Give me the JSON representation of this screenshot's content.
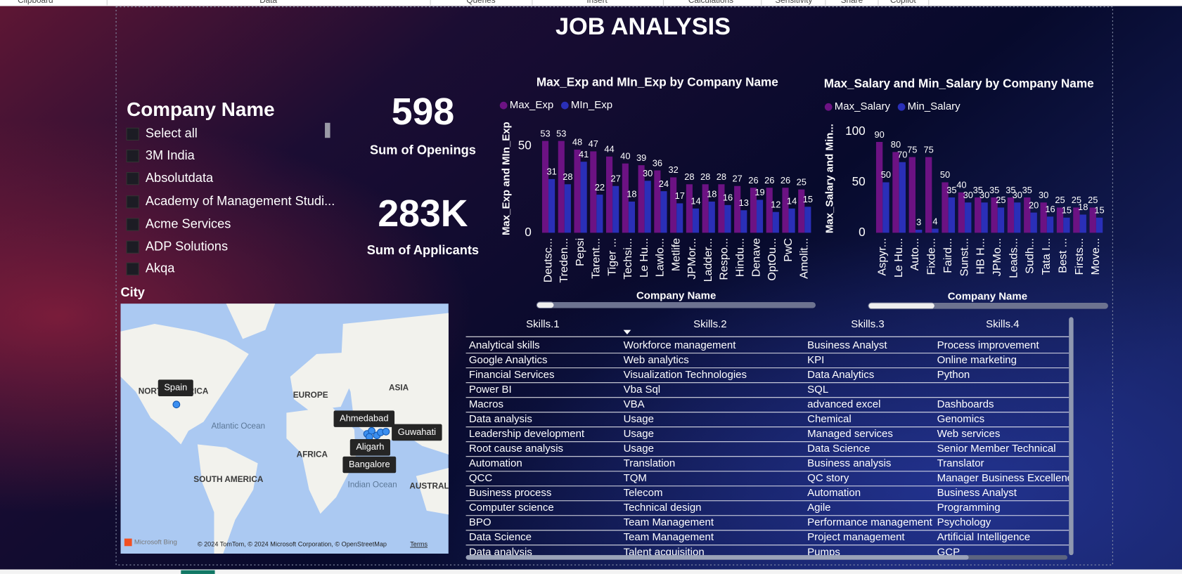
{
  "ribbon": [
    "Clipboard",
    "Data",
    "Queries",
    "Insert",
    "Calculations",
    "Sensitivity",
    "Share",
    "Copilot"
  ],
  "title": "JOB ANALYSIS",
  "slicer": {
    "title": "Company Name",
    "items": [
      "Select all",
      "3M India",
      "Absolutdata",
      "Academy of Management Studi...",
      "Acme Services",
      "ADP Solutions",
      "Akqa"
    ]
  },
  "kpis": [
    {
      "value": "598",
      "label": "Sum of Openings"
    },
    {
      "value": "283K",
      "label": "Sum of Applicants"
    }
  ],
  "chart_data": [
    {
      "type": "bar",
      "title": "Max_Exp and MIn_Exp by Company Name",
      "y_label": "Max_Exp and MIn_Exp",
      "x_label": "Company Name",
      "categories": [
        "Deutsc...",
        "Treden...",
        "Pepsi",
        "Tarent...",
        "Tiger ...",
        "Techsi...",
        "Le Hu...",
        "Lawlo...",
        "Metlife",
        "JPMor...",
        "Ladder...",
        "Respo...",
        "Hindu...",
        "Denave",
        "OptOu...",
        "PwC",
        "Amolit..."
      ],
      "series": [
        {
          "name": "Max_Exp",
          "color": "#6c1283",
          "values": [
            53,
            53,
            48,
            47,
            44,
            40,
            39,
            36,
            32,
            28,
            28,
            28,
            27,
            26,
            26,
            26,
            25
          ]
        },
        {
          "name": "MIn_Exp",
          "color": "#2a2fb8",
          "values": [
            31,
            28,
            41,
            22,
            27,
            18,
            30,
            24,
            17,
            14,
            18,
            16,
            13,
            19,
            12,
            14,
            15
          ]
        }
      ],
      "ylim": [
        0,
        60
      ],
      "yticks": [
        0,
        50
      ],
      "legend": "top-left"
    },
    {
      "type": "bar",
      "title": "Max_Salary and Min_Salary by Company Name",
      "y_label": "Max_Salary and Min...",
      "x_label": "Company Name",
      "categories": [
        "Aspyr...",
        "Le Hu...",
        "Auto...",
        "Fixde...",
        "Faird...",
        "Sunst...",
        "HB H...",
        "JPMo...",
        "Leads...",
        "Sudh...",
        "Tata I...",
        "Best ...",
        "Firsts...",
        "Move..."
      ],
      "series": [
        {
          "name": "Max_Salary",
          "color": "#6c1283",
          "values": [
            90,
            80,
            75,
            75,
            50,
            40,
            35,
            35,
            35,
            35,
            30,
            25,
            25,
            25
          ]
        },
        {
          "name": "Min_Salary",
          "color": "#2a2fb8",
          "values": [
            50,
            70,
            3,
            4,
            35,
            30,
            30,
            25,
            30,
            20,
            16,
            15,
            18,
            15
          ]
        }
      ],
      "ylim": [
        0,
        100
      ],
      "yticks": [
        0,
        50,
        100
      ],
      "legend": "top-left"
    }
  ],
  "map": {
    "title": "City",
    "regions": [
      "NORTH AMERICA",
      "EUROPE",
      "ASIA",
      "Atlantic Ocean",
      "AFRICA",
      "SOUTH AMERICA",
      "Indian Ocean",
      "AUSTRALIA"
    ],
    "cities": [
      "Spain",
      "Ahmedabad",
      "Guwahati",
      "Aligarh",
      "Bangalore"
    ],
    "logo": "Microsoft Bing",
    "attribution": "© 2024 TomTom, © 2024 Microsoft Corporation, © OpenStreetMap",
    "terms": "Terms"
  },
  "table": {
    "headers": [
      "Skills.1",
      "Skills.2",
      "Skills.3",
      "Skills.4"
    ],
    "rows": [
      [
        "Analytical skills",
        "Workforce management",
        "Business Analyst",
        "Process improvement"
      ],
      [
        "Google Analytics",
        "Web analytics",
        "KPI",
        "Online marketing"
      ],
      [
        "Financial Services",
        "Visualization Technologies",
        "Data Analytics",
        "Python"
      ],
      [
        "Power BI",
        "Vba Sql",
        "SQL",
        null
      ],
      [
        "Macros",
        "VBA",
        "advanced excel",
        "Dashboards"
      ],
      [
        "Data analysis",
        "Usage",
        "Chemical",
        "Genomics"
      ],
      [
        "Leadership development",
        "Usage",
        "Managed services",
        "Web services"
      ],
      [
        "Root cause analysis",
        "Usage",
        "Data Science",
        "Senior Member Technical"
      ],
      [
        "Automation",
        "Translation",
        "Business analysis",
        "Translator"
      ],
      [
        "QCC",
        "TQM",
        "QC story",
        "Manager Business Excellence"
      ],
      [
        "Business process",
        "Telecom",
        "Automation",
        "Business Analyst"
      ],
      [
        "Computer science",
        "Technical design",
        "Agile",
        "Programming"
      ],
      [
        "BPO",
        "Team Management",
        "Performance management",
        "Psychology"
      ],
      [
        "Data Science",
        "Team Management",
        "Project management",
        "Artificial Intelligence"
      ],
      [
        "Data analysis",
        "Talent acquisition",
        "Pumps",
        "GCP"
      ]
    ]
  }
}
